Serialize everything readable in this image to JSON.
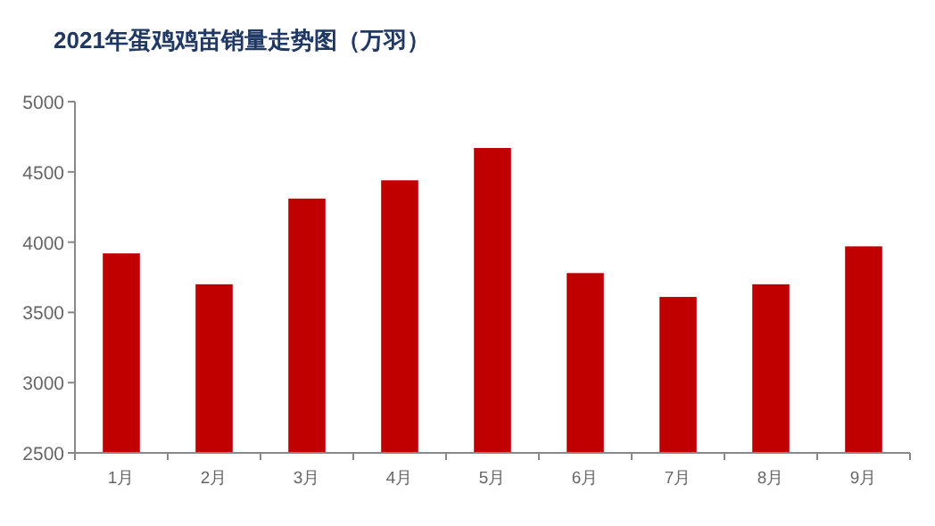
{
  "chart_data": {
    "type": "bar",
    "title": "2021年蛋鸡鸡苗销量走势图（万羽）",
    "categories": [
      "1月",
      "2月",
      "3月",
      "4月",
      "5月",
      "6月",
      "7月",
      "8月",
      "9月"
    ],
    "values": [
      3920,
      3700,
      4310,
      4440,
      4670,
      3780,
      3610,
      3700,
      3970
    ],
    "color": "#c00000",
    "ylim": [
      2500,
      5000
    ],
    "yticks": [
      2500,
      3000,
      3500,
      4000,
      4500,
      5000
    ],
    "grid": false
  }
}
